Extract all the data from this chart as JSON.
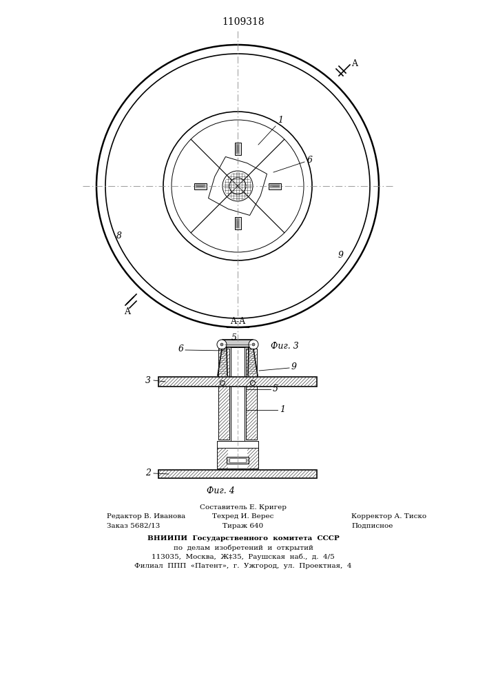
{
  "title": "1109318",
  "fig3_label": "Фиг. 3",
  "fig4_label": "Фиг. 4",
  "section_label": "A-A",
  "bg_color": "#ffffff",
  "line_color": "#000000",
  "footer": {
    "col1_row1": "Редактор В. Иванова",
    "col1_row2": "Заказ 5682/13",
    "col2_row0": "Составитель Е. Кригер",
    "col2_row1": "Техред И. Верес",
    "col2_row2": "Тираж 640",
    "col3_row1": "Корректор А. Тиско",
    "col3_row2": "Подписное",
    "vniip1": "ВНИИПИ  Государственного  комитета  СССР",
    "vniip2": "по  делам  изобретений  и  открытий",
    "vniip3": "113035,  Москва,  Ж‡35,  Раушская  наб.,  д.  4/5",
    "vniip4": "Филиал  ППП  «Патент»,  г.  Ужгород,  ул.  Проектная,  4"
  }
}
